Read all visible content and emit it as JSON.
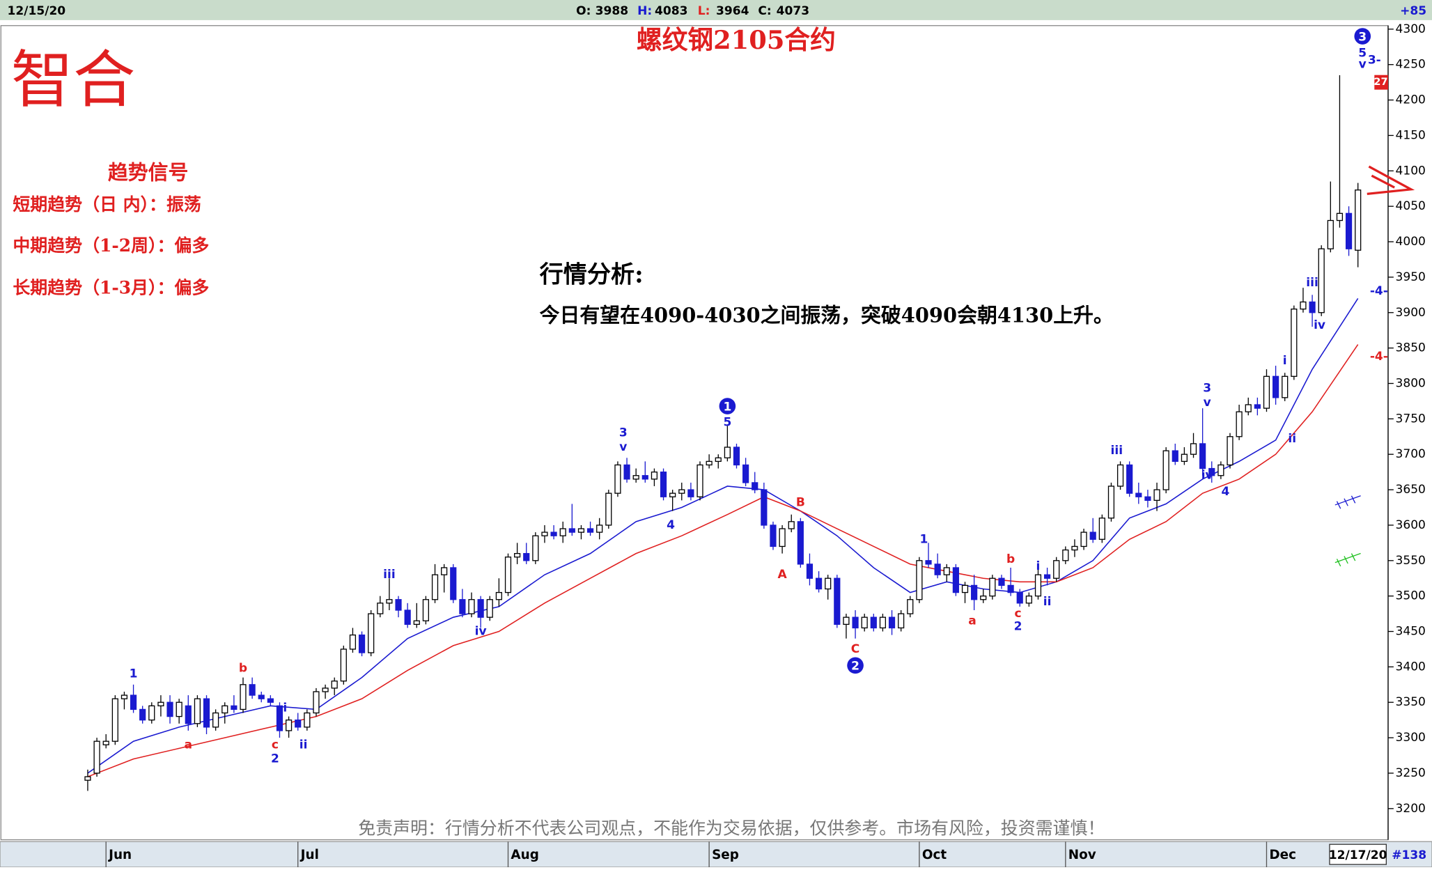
{
  "chart_data": {
    "type": "candlestick",
    "title": "螺纹钢2105合约",
    "logo": "智合",
    "info": {
      "date": "12/15/20",
      "open_label": "O:",
      "open": 3988,
      "high_label": "H:",
      "high": 4083,
      "low_label": "L:",
      "low": 3964,
      "close_label": "C:",
      "close": 4073,
      "change": "+85"
    },
    "footer": {
      "date": "12/17/20",
      "count": "#138"
    },
    "badge": "27",
    "trend": {
      "title": "趋势信号",
      "lines": [
        "短期趋势（日  内）：振荡",
        "中期趋势（1-2周）：偏多",
        "长期趋势（1-3月）：偏多"
      ]
    },
    "analysis": {
      "title": "行情分析:",
      "text": "今日有望在4090-4030之间振荡，突破4090会朝4130上升。"
    },
    "disclaimer": "免责声明：行情分析不代表公司观点，不能作为交易依据，仅供参考。市场有风险，投资需谨慎！",
    "ylim": [
      3156,
      4305
    ],
    "yticks": [
      3200,
      3250,
      3300,
      3350,
      3400,
      3450,
      3500,
      3550,
      3600,
      3650,
      3700,
      3750,
      3800,
      3850,
      3900,
      3950,
      4000,
      4050,
      4100,
      4150,
      4200,
      4250,
      4300
    ],
    "xlim": [
      -9.5,
      142.3
    ],
    "xticks": [
      {
        "value": 2,
        "label": "Jun"
      },
      {
        "value": 23,
        "label": "Jul"
      },
      {
        "value": 46,
        "label": "Aug"
      },
      {
        "value": 68,
        "label": "Sep"
      },
      {
        "value": 91,
        "label": "Oct"
      },
      {
        "value": 107,
        "label": "Nov"
      },
      {
        "value": 129,
        "label": "Dec"
      }
    ],
    "up_color": "#ffffff",
    "down_color": "#1a1ad0",
    "ohlc": [
      [
        3240,
        3255,
        3225,
        3245
      ],
      [
        3250,
        3300,
        3245,
        3295
      ],
      [
        3290,
        3305,
        3285,
        3295
      ],
      [
        3295,
        3360,
        3290,
        3355
      ],
      [
        3355,
        3365,
        3340,
        3360
      ],
      [
        3360,
        3375,
        3335,
        3340
      ],
      [
        3340,
        3345,
        3320,
        3325
      ],
      [
        3325,
        3350,
        3320,
        3345
      ],
      [
        3345,
        3360,
        3330,
        3350
      ],
      [
        3350,
        3360,
        3320,
        3330
      ],
      [
        3330,
        3355,
        3320,
        3350
      ],
      [
        3345,
        3360,
        3310,
        3320
      ],
      [
        3320,
        3360,
        3315,
        3355
      ],
      [
        3355,
        3360,
        3305,
        3315
      ],
      [
        3315,
        3340,
        3310,
        3335
      ],
      [
        3335,
        3350,
        3320,
        3345
      ],
      [
        3345,
        3360,
        3335,
        3340
      ],
      [
        3340,
        3385,
        3335,
        3375
      ],
      [
        3375,
        3385,
        3355,
        3360
      ],
      [
        3360,
        3365,
        3350,
        3355
      ],
      [
        3355,
        3360,
        3345,
        3350
      ],
      [
        3345,
        3350,
        3300,
        3310
      ],
      [
        3310,
        3330,
        3300,
        3325
      ],
      [
        3325,
        3335,
        3310,
        3315
      ],
      [
        3315,
        3340,
        3310,
        3335
      ],
      [
        3335,
        3370,
        3330,
        3365
      ],
      [
        3365,
        3375,
        3355,
        3370
      ],
      [
        3370,
        3385,
        3360,
        3380
      ],
      [
        3380,
        3430,
        3375,
        3425
      ],
      [
        3425,
        3455,
        3420,
        3445
      ],
      [
        3445,
        3450,
        3415,
        3420
      ],
      [
        3420,
        3480,
        3415,
        3475
      ],
      [
        3475,
        3500,
        3470,
        3490
      ],
      [
        3490,
        3525,
        3480,
        3495
      ],
      [
        3495,
        3500,
        3470,
        3480
      ],
      [
        3480,
        3490,
        3455,
        3460
      ],
      [
        3460,
        3490,
        3455,
        3465
      ],
      [
        3465,
        3500,
        3460,
        3495
      ],
      [
        3495,
        3545,
        3490,
        3530
      ],
      [
        3530,
        3545,
        3505,
        3540
      ],
      [
        3540,
        3545,
        3490,
        3495
      ],
      [
        3495,
        3510,
        3470,
        3475
      ],
      [
        3475,
        3505,
        3470,
        3495
      ],
      [
        3495,
        3500,
        3455,
        3470
      ],
      [
        3470,
        3500,
        3465,
        3495
      ],
      [
        3495,
        3525,
        3485,
        3505
      ],
      [
        3505,
        3560,
        3500,
        3555
      ],
      [
        3555,
        3575,
        3545,
        3560
      ],
      [
        3560,
        3575,
        3545,
        3550
      ],
      [
        3550,
        3590,
        3545,
        3585
      ],
      [
        3585,
        3600,
        3575,
        3590
      ],
      [
        3590,
        3600,
        3580,
        3585
      ],
      [
        3585,
        3605,
        3575,
        3595
      ],
      [
        3595,
        3630,
        3585,
        3590
      ],
      [
        3590,
        3600,
        3580,
        3595
      ],
      [
        3595,
        3605,
        3585,
        3590
      ],
      [
        3590,
        3610,
        3580,
        3600
      ],
      [
        3600,
        3650,
        3595,
        3645
      ],
      [
        3645,
        3690,
        3640,
        3685
      ],
      [
        3685,
        3695,
        3660,
        3665
      ],
      [
        3665,
        3680,
        3660,
        3670
      ],
      [
        3670,
        3690,
        3660,
        3665
      ],
      [
        3665,
        3680,
        3655,
        3675
      ],
      [
        3675,
        3680,
        3635,
        3640
      ],
      [
        3640,
        3650,
        3620,
        3645
      ],
      [
        3645,
        3660,
        3635,
        3650
      ],
      [
        3650,
        3660,
        3635,
        3640
      ],
      [
        3640,
        3690,
        3635,
        3685
      ],
      [
        3685,
        3700,
        3680,
        3690
      ],
      [
        3690,
        3700,
        3680,
        3695
      ],
      [
        3695,
        3740,
        3690,
        3710
      ],
      [
        3710,
        3715,
        3680,
        3685
      ],
      [
        3685,
        3695,
        3655,
        3660
      ],
      [
        3660,
        3675,
        3645,
        3650
      ],
      [
        3650,
        3660,
        3595,
        3600
      ],
      [
        3600,
        3605,
        3565,
        3570
      ],
      [
        3570,
        3600,
        3560,
        3595
      ],
      [
        3595,
        3615,
        3590,
        3605
      ],
      [
        3605,
        3610,
        3540,
        3545
      ],
      [
        3545,
        3560,
        3515,
        3525
      ],
      [
        3525,
        3535,
        3505,
        3510
      ],
      [
        3510,
        3530,
        3495,
        3525
      ],
      [
        3525,
        3530,
        3455,
        3460
      ],
      [
        3460,
        3475,
        3440,
        3470
      ],
      [
        3470,
        3480,
        3440,
        3455
      ],
      [
        3455,
        3475,
        3450,
        3470
      ],
      [
        3470,
        3475,
        3450,
        3455
      ],
      [
        3455,
        3475,
        3450,
        3470
      ],
      [
        3470,
        3480,
        3445,
        3455
      ],
      [
        3455,
        3480,
        3450,
        3475
      ],
      [
        3475,
        3500,
        3470,
        3495
      ],
      [
        3495,
        3555,
        3490,
        3550
      ],
      [
        3550,
        3575,
        3540,
        3545
      ],
      [
        3545,
        3560,
        3525,
        3530
      ],
      [
        3530,
        3545,
        3520,
        3540
      ],
      [
        3540,
        3545,
        3500,
        3505
      ],
      [
        3505,
        3520,
        3490,
        3515
      ],
      [
        3515,
        3530,
        3480,
        3495
      ],
      [
        3495,
        3510,
        3490,
        3500
      ],
      [
        3500,
        3530,
        3495,
        3525
      ],
      [
        3525,
        3530,
        3510,
        3515
      ],
      [
        3515,
        3540,
        3500,
        3505
      ],
      [
        3505,
        3510,
        3485,
        3490
      ],
      [
        3490,
        3505,
        3485,
        3500
      ],
      [
        3500,
        3540,
        3495,
        3530
      ],
      [
        3530,
        3540,
        3515,
        3525
      ],
      [
        3525,
        3555,
        3520,
        3550
      ],
      [
        3550,
        3570,
        3545,
        3565
      ],
      [
        3565,
        3580,
        3555,
        3570
      ],
      [
        3570,
        3595,
        3565,
        3590
      ],
      [
        3590,
        3610,
        3575,
        3580
      ],
      [
        3580,
        3615,
        3575,
        3610
      ],
      [
        3610,
        3660,
        3605,
        3655
      ],
      [
        3655,
        3690,
        3650,
        3685
      ],
      [
        3685,
        3690,
        3640,
        3645
      ],
      [
        3645,
        3660,
        3630,
        3640
      ],
      [
        3640,
        3650,
        3625,
        3635
      ],
      [
        3635,
        3660,
        3620,
        3650
      ],
      [
        3650,
        3710,
        3645,
        3705
      ],
      [
        3705,
        3715,
        3685,
        3690
      ],
      [
        3690,
        3710,
        3685,
        3700
      ],
      [
        3700,
        3730,
        3695,
        3715
      ],
      [
        3715,
        3765,
        3670,
        3680
      ],
      [
        3680,
        3690,
        3660,
        3670
      ],
      [
        3670,
        3690,
        3665,
        3685
      ],
      [
        3685,
        3730,
        3680,
        3725
      ],
      [
        3725,
        3770,
        3720,
        3760
      ],
      [
        3760,
        3780,
        3755,
        3770
      ],
      [
        3770,
        3780,
        3755,
        3765
      ],
      [
        3765,
        3820,
        3760,
        3810
      ],
      [
        3810,
        3825,
        3770,
        3780
      ],
      [
        3780,
        3815,
        3775,
        3810
      ],
      [
        3810,
        3910,
        3805,
        3905
      ],
      [
        3905,
        3935,
        3900,
        3915
      ],
      [
        3915,
        3925,
        3880,
        3900
      ],
      [
        3900,
        3995,
        3895,
        3990
      ],
      [
        3990,
        4085,
        3985,
        4030
      ],
      [
        4030,
        4235,
        4020,
        4040
      ],
      [
        4040,
        4050,
        3980,
        3990
      ],
      [
        3988,
        4083,
        3964,
        4073
      ]
    ],
    "series": [
      {
        "color": "#1a1ad0",
        "x": [
          0,
          5,
          10,
          15,
          20,
          25,
          30,
          35,
          40,
          45,
          50,
          55,
          60,
          65,
          70,
          74,
          78,
          82,
          86,
          90,
          94,
          98,
          102,
          106,
          110,
          114,
          118,
          122,
          126,
          130,
          134,
          139
        ],
        "values": [
          3250,
          3295,
          3315,
          3330,
          3345,
          3340,
          3385,
          3440,
          3470,
          3485,
          3530,
          3560,
          3605,
          3625,
          3655,
          3650,
          3620,
          3585,
          3540,
          3505,
          3520,
          3510,
          3505,
          3520,
          3550,
          3610,
          3630,
          3665,
          3690,
          3720,
          3820,
          3920
        ]
      },
      {
        "color": "#e02020",
        "x": [
          0,
          5,
          10,
          15,
          20,
          25,
          30,
          35,
          40,
          45,
          50,
          55,
          60,
          65,
          70,
          74,
          78,
          82,
          86,
          90,
          94,
          98,
          102,
          106,
          110,
          114,
          118,
          122,
          126,
          130,
          134,
          139
        ],
        "values": [
          3245,
          3270,
          3285,
          3300,
          3315,
          3330,
          3355,
          3395,
          3430,
          3450,
          3490,
          3525,
          3560,
          3585,
          3615,
          3640,
          3620,
          3595,
          3570,
          3545,
          3535,
          3525,
          3520,
          3520,
          3540,
          3580,
          3605,
          3645,
          3665,
          3700,
          3760,
          3855
        ]
      }
    ],
    "wave_labels": [
      {
        "text": "1",
        "x": 5,
        "y": 3390,
        "color": "#1a1ad0"
      },
      {
        "text": "a",
        "x": 11,
        "y": 3290,
        "color": "#e02020"
      },
      {
        "text": "b",
        "x": 17,
        "y": 3398,
        "color": "#e02020"
      },
      {
        "text": "c",
        "x": 20.5,
        "y": 3290,
        "color": "#e02020"
      },
      {
        "text": "2",
        "x": 20.5,
        "y": 3270,
        "color": "#1a1ad0"
      },
      {
        "text": "i",
        "x": 21.6,
        "y": 3342,
        "color": "#1a1ad0"
      },
      {
        "text": "ii",
        "x": 23.6,
        "y": 3290,
        "color": "#1a1ad0"
      },
      {
        "text": "iii",
        "x": 33,
        "y": 3530,
        "color": "#1a1ad0"
      },
      {
        "text": "iv",
        "x": 43,
        "y": 3450,
        "color": "#1a1ad0"
      },
      {
        "text": "3",
        "x": 58.6,
        "y": 3730,
        "color": "#1a1ad0"
      },
      {
        "text": "v",
        "x": 58.6,
        "y": 3710,
        "color": "#1a1ad0"
      },
      {
        "text": "4",
        "x": 63.8,
        "y": 3600,
        "color": "#1a1ad0"
      },
      {
        "text": "1",
        "x": 70,
        "y": 3768,
        "color": "#1a1ad0",
        "circled": true
      },
      {
        "text": "5",
        "x": 70,
        "y": 3745,
        "color": "#1a1ad0"
      },
      {
        "text": "A",
        "x": 76,
        "y": 3530,
        "color": "#e02020"
      },
      {
        "text": "B",
        "x": 78,
        "y": 3632,
        "color": "#e02020"
      },
      {
        "text": "C",
        "x": 84,
        "y": 3425,
        "color": "#e02020"
      },
      {
        "text": "2",
        "x": 84,
        "y": 3402,
        "color": "#1a1ad0",
        "circled": true
      },
      {
        "text": "1",
        "x": 91.5,
        "y": 3580,
        "color": "#1a1ad0"
      },
      {
        "text": "a",
        "x": 96.8,
        "y": 3465,
        "color": "#e02020"
      },
      {
        "text": "b",
        "x": 101,
        "y": 3552,
        "color": "#e02020"
      },
      {
        "text": "c",
        "x": 101.8,
        "y": 3475,
        "color": "#e02020"
      },
      {
        "text": "2",
        "x": 101.8,
        "y": 3457,
        "color": "#1a1ad0"
      },
      {
        "text": "i",
        "x": 104,
        "y": 3542,
        "color": "#1a1ad0"
      },
      {
        "text": "ii",
        "x": 105,
        "y": 3492,
        "color": "#1a1ad0"
      },
      {
        "text": "iii",
        "x": 112.6,
        "y": 3705,
        "color": "#1a1ad0"
      },
      {
        "text": "iv",
        "x": 122.5,
        "y": 3670,
        "color": "#1a1ad0"
      },
      {
        "text": "3",
        "x": 122.5,
        "y": 3793,
        "color": "#1a1ad0"
      },
      {
        "text": "v",
        "x": 122.5,
        "y": 3773,
        "color": "#1a1ad0"
      },
      {
        "text": "4",
        "x": 124.5,
        "y": 3647,
        "color": "#1a1ad0"
      },
      {
        "text": "i",
        "x": 131,
        "y": 3832,
        "color": "#1a1ad0"
      },
      {
        "text": "ii",
        "x": 131.8,
        "y": 3722,
        "color": "#1a1ad0"
      },
      {
        "text": "iii",
        "x": 134,
        "y": 3942,
        "color": "#1a1ad0"
      },
      {
        "text": "iv",
        "x": 134.8,
        "y": 3882,
        "color": "#1a1ad0"
      },
      {
        "text": "3",
        "x": 139.5,
        "y": 4290,
        "color": "#1a1ad0",
        "circled": true
      },
      {
        "text": "5",
        "x": 139.5,
        "y": 4266,
        "color": "#1a1ad0"
      },
      {
        "text": "v",
        "x": 139.5,
        "y": 4250,
        "color": "#1a1ad0"
      },
      {
        "text": "3-",
        "x": 140.8,
        "y": 4256,
        "color": "#1a1ad0"
      },
      {
        "text": "-4-",
        "x": 141.3,
        "y": 3930,
        "color": "#1a1ad0"
      },
      {
        "text": "-4-",
        "x": 141.3,
        "y": 3838,
        "color": "#e02020"
      }
    ]
  }
}
